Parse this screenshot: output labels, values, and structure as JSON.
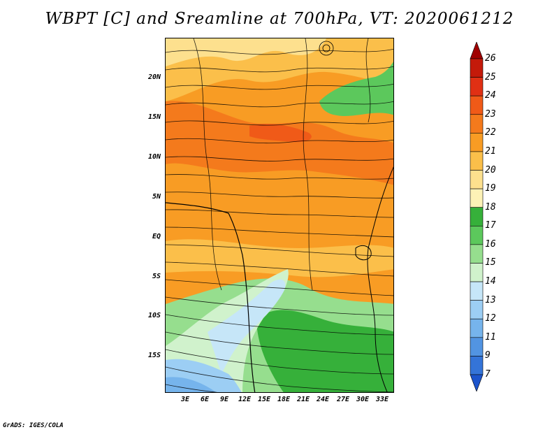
{
  "title": "WBPT [C] and Sreamline at 700hPa, VT: 2020061212",
  "credit": "GrADS: IGES/COLA",
  "lat_labels": [
    "20N",
    "15N",
    "10N",
    "5N",
    "EQ",
    "5S",
    "10S",
    "15S"
  ],
  "lon_labels": [
    "3E",
    "6E",
    "9E",
    "12E",
    "15E",
    "18E",
    "21E",
    "24E",
    "27E",
    "30E",
    "33E"
  ],
  "colorbar": {
    "labels": [
      "26",
      "25",
      "24",
      "23",
      "22",
      "21",
      "20",
      "19",
      "18",
      "17",
      "16",
      "15",
      "14",
      "13",
      "12",
      "11",
      "9",
      "7"
    ],
    "colors": [
      "#a00000",
      "#c41a0a",
      "#e03014",
      "#f05a18",
      "#f47a1c",
      "#f89c24",
      "#fbbf4a",
      "#fde08e",
      "#fdf2b6",
      "#36b03a",
      "#5cc85c",
      "#96de8e",
      "#d0f2cc",
      "#c6e6f8",
      "#9ccef4",
      "#76b4ec",
      "#5294e2",
      "#3474d8",
      "#1c54cc"
    ]
  }
}
